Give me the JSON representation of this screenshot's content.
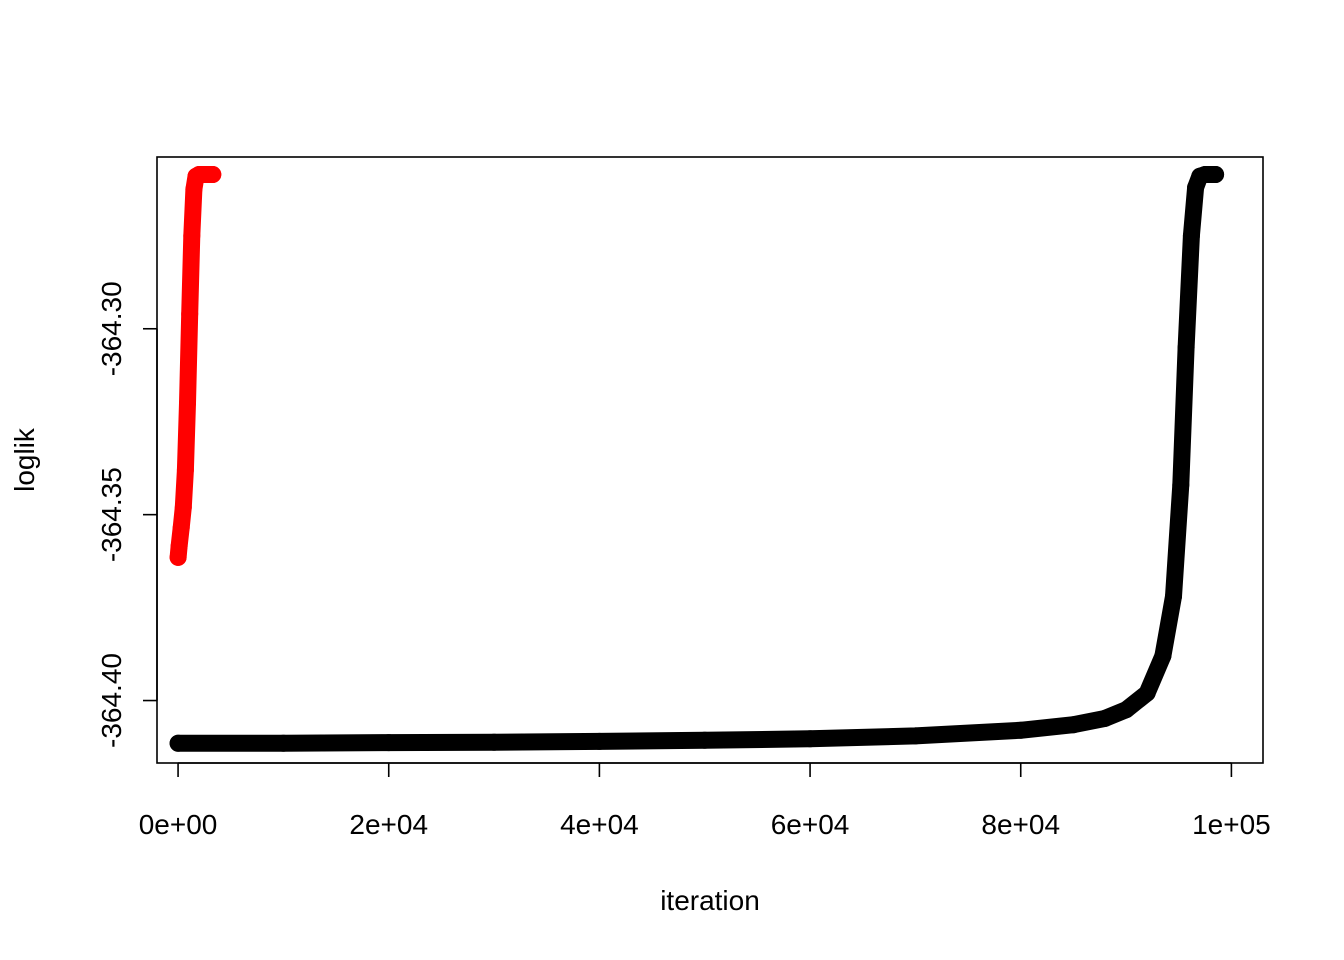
{
  "chart_data": {
    "type": "scatter",
    "title": "",
    "xlabel": "iteration",
    "ylabel": "loglik",
    "xlim": [
      -2000,
      103000
    ],
    "ylim": [
      -364.4168,
      -364.2538
    ],
    "x_ticks": [
      {
        "value": 0,
        "label": "0e+00"
      },
      {
        "value": 20000,
        "label": "2e+04"
      },
      {
        "value": 40000,
        "label": "4e+04"
      },
      {
        "value": 60000,
        "label": "6e+04"
      },
      {
        "value": 80000,
        "label": "8e+04"
      },
      {
        "value": 100000,
        "label": "1e+05"
      }
    ],
    "y_ticks": [
      {
        "value": -364.4,
        "label": "-364.40"
      },
      {
        "value": -364.35,
        "label": "-364.35"
      },
      {
        "value": -364.3,
        "label": "-364.30"
      }
    ],
    "grid": false,
    "legend": null,
    "series": [
      {
        "color": "#ff0000",
        "points": [
          {
            "x": 0,
            "y": -364.3615
          },
          {
            "x": 100,
            "y": -364.3585
          },
          {
            "x": 300,
            "y": -364.3535
          },
          {
            "x": 500,
            "y": -364.348
          },
          {
            "x": 700,
            "y": -364.338
          },
          {
            "x": 900,
            "y": -364.32
          },
          {
            "x": 1100,
            "y": -364.296
          },
          {
            "x": 1300,
            "y": -364.275
          },
          {
            "x": 1500,
            "y": -364.2625
          },
          {
            "x": 1700,
            "y": -364.259
          },
          {
            "x": 2000,
            "y": -364.2585
          },
          {
            "x": 2500,
            "y": -364.2585
          },
          {
            "x": 3000,
            "y": -364.2585
          },
          {
            "x": 3300,
            "y": -364.2585
          }
        ]
      },
      {
        "color": "#000000",
        "points": [
          {
            "x": 0,
            "y": -364.4115
          },
          {
            "x": 10000,
            "y": -364.4115
          },
          {
            "x": 20000,
            "y": -364.4113
          },
          {
            "x": 30000,
            "y": -364.4112
          },
          {
            "x": 40000,
            "y": -364.411
          },
          {
            "x": 50000,
            "y": -364.4107
          },
          {
            "x": 60000,
            "y": -364.4103
          },
          {
            "x": 70000,
            "y": -364.4095
          },
          {
            "x": 80000,
            "y": -364.408
          },
          {
            "x": 85000,
            "y": -364.4065
          },
          {
            "x": 88000,
            "y": -364.4048
          },
          {
            "x": 90000,
            "y": -364.4025
          },
          {
            "x": 92000,
            "y": -364.398
          },
          {
            "x": 93500,
            "y": -364.388
          },
          {
            "x": 94500,
            "y": -364.372
          },
          {
            "x": 95200,
            "y": -364.342
          },
          {
            "x": 95700,
            "y": -364.305
          },
          {
            "x": 96200,
            "y": -364.275
          },
          {
            "x": 96600,
            "y": -364.262
          },
          {
            "x": 97000,
            "y": -364.259
          },
          {
            "x": 97500,
            "y": -364.2585
          },
          {
            "x": 98000,
            "y": -364.2585
          },
          {
            "x": 98500,
            "y": -364.2585
          }
        ]
      }
    ]
  }
}
